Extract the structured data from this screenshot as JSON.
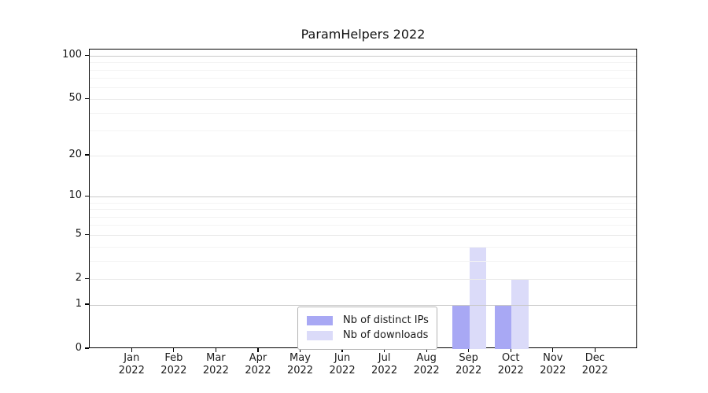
{
  "chart_data": {
    "type": "bar",
    "title": "ParamHelpers 2022",
    "categories": [
      "Jan",
      "Feb",
      "Mar",
      "Apr",
      "May",
      "Jun",
      "Jul",
      "Aug",
      "Sep",
      "Oct",
      "Nov",
      "Dec"
    ],
    "x_tick_line2": "2022",
    "series": [
      {
        "name": "Nb of distinct IPs",
        "color": "#a8a8f4",
        "values": [
          0,
          0,
          0,
          0,
          0,
          0,
          0,
          0,
          1,
          1,
          0,
          0
        ]
      },
      {
        "name": "Nb of downloads",
        "color": "#dbdbf9",
        "values": [
          0,
          0,
          0,
          0,
          0,
          0,
          0,
          0,
          4,
          2,
          0,
          0
        ]
      }
    ],
    "yticks": [
      0,
      1,
      2,
      5,
      10,
      20,
      50,
      100
    ],
    "scale": "log1p",
    "ylim": [
      0,
      111
    ],
    "grid": {
      "decade_lines": [
        1,
        10,
        100
      ],
      "major_lines": [
        2,
        5,
        20,
        50
      ],
      "minor_lines": [
        3,
        4,
        6,
        7,
        8,
        9,
        30,
        40,
        60,
        70,
        80,
        90
      ]
    },
    "legend": {
      "position": "inside-bottom-center",
      "items": [
        "Nb of distinct IPs",
        "Nb of downloads"
      ]
    },
    "colors": {
      "grid_decade": "#c9c9c9",
      "grid_major": "#ebebeb",
      "grid_minor": "#f4f4f4",
      "axis": "#000000",
      "text": "#1a1a1a",
      "legend_border": "#b4b4b4",
      "background": "#ffffff"
    }
  }
}
